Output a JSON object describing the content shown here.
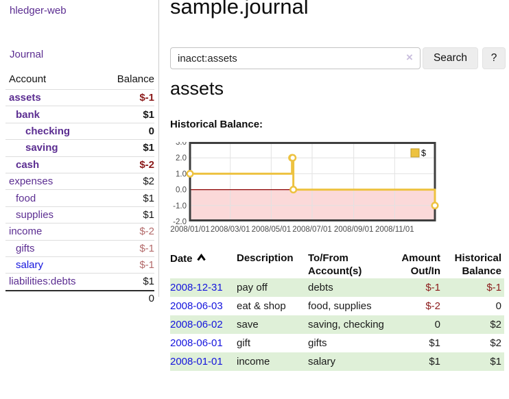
{
  "colors": {
    "link_purple": "#5b2d91",
    "link_blue": "#1414dd",
    "negative_dark": "#8b1a1a",
    "negative_soft": "#b36a6a",
    "row_stripe_green": "#dff0d8",
    "chart_line": "#edc240",
    "chart_negative_fill": "#fbd9d9",
    "chart_zero_line": "#8b0000",
    "chart_border": "#3e3e3e",
    "chart_grid": "#e2e2e2"
  },
  "sidebar": {
    "brand": "hledger-web",
    "nav": [
      {
        "label": "Journal"
      }
    ],
    "table": {
      "account_header": "Account",
      "balance_header": "Balance",
      "accounts": [
        {
          "name": "assets",
          "balance": "$-1",
          "indent": 1,
          "bold": true,
          "balance_tone": "neg-dark"
        },
        {
          "name": "bank",
          "balance": "$1",
          "indent": 2,
          "bold": true,
          "balance_tone": "pos"
        },
        {
          "name": "checking",
          "balance": "0",
          "indent": 3,
          "bold": true,
          "balance_tone": "pos"
        },
        {
          "name": "saving",
          "balance": "$1",
          "indent": 3,
          "bold": true,
          "balance_tone": "pos"
        },
        {
          "name": "cash",
          "balance": "$-2",
          "indent": 2,
          "bold": true,
          "balance_tone": "neg-dark"
        },
        {
          "name": "expenses",
          "balance": "$2",
          "indent": 1,
          "bold": false,
          "balance_tone": "pos"
        },
        {
          "name": "food",
          "balance": "$1",
          "indent": 2,
          "bold": false,
          "balance_tone": "pos"
        },
        {
          "name": "supplies",
          "balance": "$1",
          "indent": 2,
          "bold": false,
          "balance_tone": "pos"
        },
        {
          "name": "income",
          "balance": "$-2",
          "indent": 1,
          "bold": false,
          "balance_tone": "neg-soft"
        },
        {
          "name": "gifts",
          "balance": "$-1",
          "indent": 2,
          "bold": false,
          "balance_tone": "neg-soft"
        },
        {
          "name": "salary",
          "balance": "$-1",
          "indent": 2,
          "bold": false,
          "balance_tone": "neg-soft",
          "link_tone": "blue"
        },
        {
          "name": "liabilities:debts",
          "balance": "$1",
          "indent": 1,
          "bold": false,
          "balance_tone": "pos"
        }
      ],
      "total": "0"
    }
  },
  "main": {
    "title": "sample.journal",
    "search": {
      "value": "inacct:assets",
      "clear": "×",
      "button": "Search",
      "help": "?"
    },
    "heading": "assets",
    "chart_title": "Historical Balance:"
  },
  "chart_data": {
    "type": "line",
    "steps": true,
    "title": "Historical Balance",
    "series": [
      {
        "name": "$",
        "color": "#edc240",
        "points": [
          [
            "2008-01-01",
            1
          ],
          [
            "2008-06-01",
            2
          ],
          [
            "2008-06-02",
            2
          ],
          [
            "2008-06-03",
            0
          ],
          [
            "2008-12-31",
            -1
          ]
        ]
      }
    ],
    "xlim": [
      "2008-01-01",
      "2008-12-31"
    ],
    "ylim": [
      -2,
      3
    ],
    "y_ticks": [
      {
        "v": 3,
        "label": "3.0"
      },
      {
        "v": 2,
        "label": "2.0"
      },
      {
        "v": 1,
        "label": "1.0"
      },
      {
        "v": 0,
        "label": "0.0"
      },
      {
        "v": -1,
        "label": "-1.0"
      },
      {
        "v": -2,
        "label": "-2.0"
      }
    ],
    "x_ticks": [
      {
        "d": "2008-01-01",
        "label": "2008/01/01"
      },
      {
        "d": "2008-03-01",
        "label": "2008/03/01"
      },
      {
        "d": "2008-05-01",
        "label": "2008/05/01"
      },
      {
        "d": "2008-07-01",
        "label": "2008/07/01"
      },
      {
        "d": "2008-09-01",
        "label": "2008/09/01"
      },
      {
        "d": "2008-11-01",
        "label": "2008/11/01"
      }
    ],
    "legend": {
      "label": "$",
      "position": "top-right"
    },
    "grid": true,
    "negative_region_shaded": true
  },
  "register": {
    "headers": {
      "date": "Date",
      "description": "Description",
      "accounts": "To/From Account(s)",
      "amount": "Amount Out/In",
      "balance": "Historical Balance"
    },
    "sort": {
      "column": "date",
      "direction": "ascending"
    },
    "rows": [
      {
        "date": "2008-12-31",
        "description": "pay off",
        "accounts": "debts",
        "amount": "$-1",
        "amount_neg": true,
        "balance": "$-1",
        "balance_neg": true
      },
      {
        "date": "2008-06-03",
        "description": "eat & shop",
        "accounts": "food, supplies",
        "amount": "$-2",
        "amount_neg": true,
        "balance": "0",
        "balance_neg": false
      },
      {
        "date": "2008-06-02",
        "description": "save",
        "accounts": "saving, checking",
        "amount": "0",
        "amount_neg": false,
        "balance": "$2",
        "balance_neg": false
      },
      {
        "date": "2008-06-01",
        "description": "gift",
        "accounts": "gifts",
        "amount": "$1",
        "amount_neg": false,
        "balance": "$2",
        "balance_neg": false
      },
      {
        "date": "2008-01-01",
        "description": "income",
        "accounts": "salary",
        "amount": "$1",
        "amount_neg": false,
        "balance": "$1",
        "balance_neg": false
      }
    ]
  }
}
